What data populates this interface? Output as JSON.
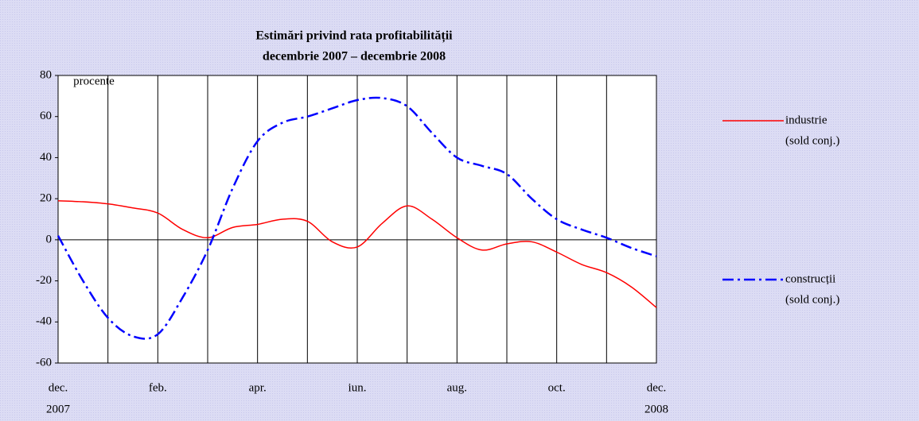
{
  "chart_data": {
    "type": "line",
    "title": "Estimări privind rata profitabilității",
    "subtitle": "decembrie 2007 – decembrie 2008",
    "ylabel": "procente",
    "x": [
      0,
      0.5,
      1,
      1.5,
      2,
      2.5,
      3,
      3.5,
      4,
      4.5,
      5,
      5.5,
      6,
      6.5,
      7,
      7.5,
      8,
      8.5,
      9,
      9.5,
      10,
      10.5,
      11,
      11.5,
      12
    ],
    "xlim": [
      0,
      12
    ],
    "xticks": [
      {
        "value": 0,
        "label": "dec."
      },
      {
        "value": 1,
        "label": null
      },
      {
        "value": 2,
        "label": "feb."
      },
      {
        "value": 3,
        "label": null
      },
      {
        "value": 4,
        "label": "apr."
      },
      {
        "value": 5,
        "label": null
      },
      {
        "value": 6,
        "label": "iun."
      },
      {
        "value": 7,
        "label": null
      },
      {
        "value": 8,
        "label": "aug."
      },
      {
        "value": 9,
        "label": null
      },
      {
        "value": 10,
        "label": "oct."
      },
      {
        "value": 11,
        "label": null
      },
      {
        "value": 12,
        "label": "dec."
      }
    ],
    "xsublabels": [
      {
        "value": 0,
        "label": "2007"
      },
      {
        "value": 12,
        "label": "2008"
      }
    ],
    "ylim": [
      -60,
      80
    ],
    "yticks": [
      -60,
      -40,
      -20,
      0,
      20,
      40,
      60,
      80
    ],
    "grid": true,
    "legend": "right",
    "series": [
      {
        "name": "industrie",
        "subname": "(sold conj.)",
        "color": "#ff0000",
        "dash": "solid",
        "values": [
          19,
          18.5,
          17.5,
          15.5,
          13,
          5,
          1,
          6,
          7.5,
          10,
          9,
          -1,
          -3.5,
          8,
          16.5,
          10,
          1,
          -5,
          -2,
          -1,
          -6,
          -12,
          -16,
          -23,
          -33
        ]
      },
      {
        "name": "construcții",
        "subname": "(sold conj.)",
        "color": "#0000ff",
        "dash": "dashdot",
        "values": [
          2,
          -20,
          -38,
          -47,
          -46,
          -28,
          -5,
          25,
          48,
          57,
          60,
          64,
          68,
          69,
          65,
          52,
          40,
          36,
          32,
          20,
          10,
          5,
          1,
          -4,
          -8
        ]
      }
    ]
  }
}
